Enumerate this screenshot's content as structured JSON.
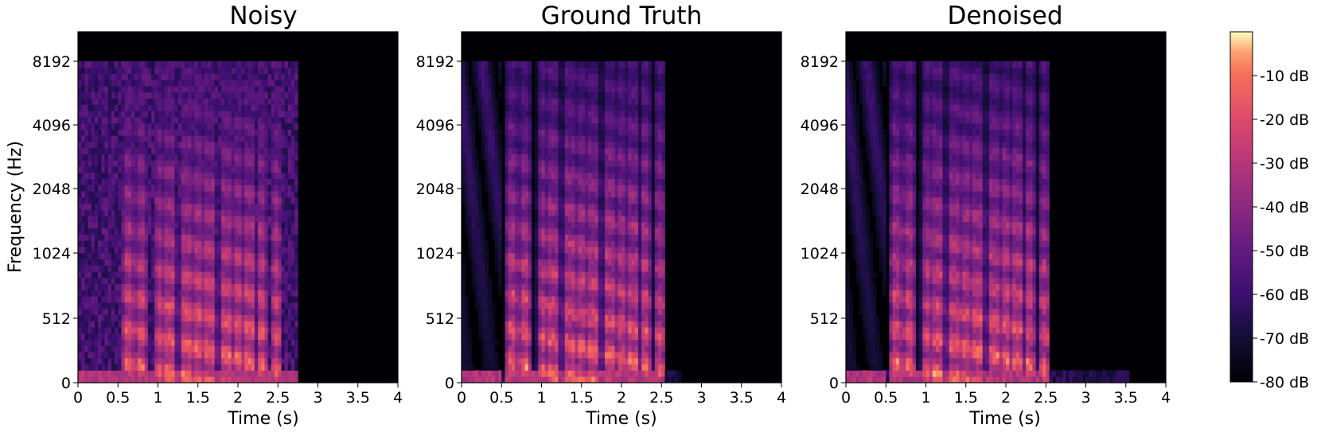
{
  "chart_data": [
    {
      "type": "heatmap",
      "title": "Noisy",
      "xlabel": "Time (s)",
      "ylabel": "Frequency (Hz)",
      "x_ticks": [
        "0",
        "0.5",
        "1",
        "1.5",
        "2",
        "2.5",
        "3",
        "3.5",
        "4"
      ],
      "y_ticks": [
        "0",
        "512",
        "1024",
        "2048",
        "4096",
        "8192"
      ],
      "xlim": [
        0,
        4
      ],
      "y_scale": "log-like (mel)",
      "speech_end_s": 2.75,
      "noise_floor": "broadband noise across full band until 2.75 s"
    },
    {
      "type": "heatmap",
      "title": "Ground Truth",
      "xlabel": "Time (s)",
      "ylabel": "",
      "x_ticks": [
        "0",
        "0.5",
        "1",
        "1.5",
        "2",
        "2.5",
        "3",
        "3.5",
        "4"
      ],
      "y_ticks": [
        "0",
        "512",
        "1024",
        "2048",
        "4096",
        "8192"
      ],
      "xlim": [
        0,
        4
      ],
      "y_scale": "log-like (mel)",
      "speech_end_s": 2.75,
      "noise_floor": "clean speech only"
    },
    {
      "type": "heatmap",
      "title": "Denoised",
      "xlabel": "Time (s)",
      "ylabel": "",
      "x_ticks": [
        "0",
        "0.5",
        "1",
        "1.5",
        "2",
        "2.5",
        "3",
        "3.5",
        "4"
      ],
      "y_ticks": [
        "0",
        "512",
        "1024",
        "2048",
        "4096",
        "8192"
      ],
      "xlim": [
        0,
        4
      ],
      "y_scale": "log-like (mel)",
      "speech_end_s": 2.75,
      "noise_floor": "residual low-frequency artifacts up to 3.5 s"
    }
  ],
  "colorbar": {
    "colormap": "magma",
    "range_db": [
      -80,
      0
    ],
    "ticks": [
      "-10 dB",
      "-20 dB",
      "-30 dB",
      "-40 dB",
      "-50 dB",
      "-60 dB",
      "-70 dB",
      "-80 dB"
    ],
    "tick_values": [
      -10,
      -20,
      -30,
      -40,
      -50,
      -60,
      -70,
      -80
    ]
  },
  "speech_segments_s": [
    [
      0.58,
      0.68
    ],
    [
      0.74,
      0.84
    ],
    [
      0.98,
      1.06
    ],
    [
      1.1,
      1.2
    ],
    [
      1.3,
      1.4
    ],
    [
      1.44,
      1.56
    ],
    [
      1.6,
      1.7
    ],
    [
      1.8,
      1.9
    ],
    [
      1.95,
      2.05
    ],
    [
      2.1,
      2.2
    ],
    [
      2.26,
      2.34
    ],
    [
      2.44,
      2.52
    ]
  ]
}
